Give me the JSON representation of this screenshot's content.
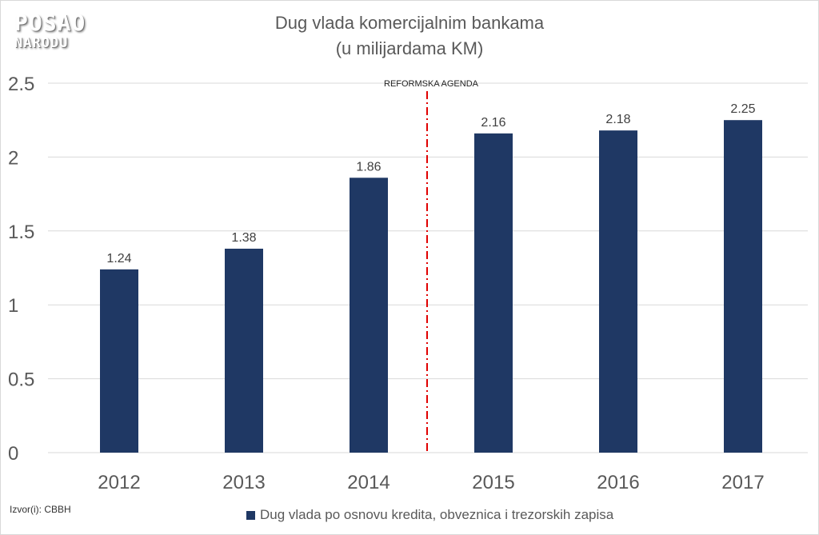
{
  "logo": {
    "line1": "POSAO",
    "line2": "NARODU"
  },
  "chart_data": {
    "type": "bar",
    "title": "Dug vlada komercijalnim bankama",
    "subtitle": "(u milijardama KM)",
    "categories": [
      "2012",
      "2013",
      "2014",
      "2015",
      "2016",
      "2017"
    ],
    "series": [
      {
        "name": "Dug vlada po osnovu kredita, obveznica i trezorskih zapisa",
        "values": [
          1.24,
          1.38,
          1.86,
          2.16,
          2.18,
          2.25
        ]
      }
    ],
    "data_labels": [
      "1.24",
      "1.38",
      "1.86",
      "2.16",
      "2.18",
      "2.25"
    ],
    "ylim": [
      0,
      2.5
    ],
    "yticks": [
      "0",
      "0.5",
      "1",
      "1.5",
      "2",
      "2.5"
    ],
    "grid": true,
    "legend": "bottom",
    "bar_color": "#1f3864",
    "annotation": {
      "text": "REFORMSKA AGENDA",
      "position": "between 2014 and 2015",
      "color": "#e00000",
      "style": "dash-dot"
    }
  },
  "source": "Izvor(i): CBBH"
}
